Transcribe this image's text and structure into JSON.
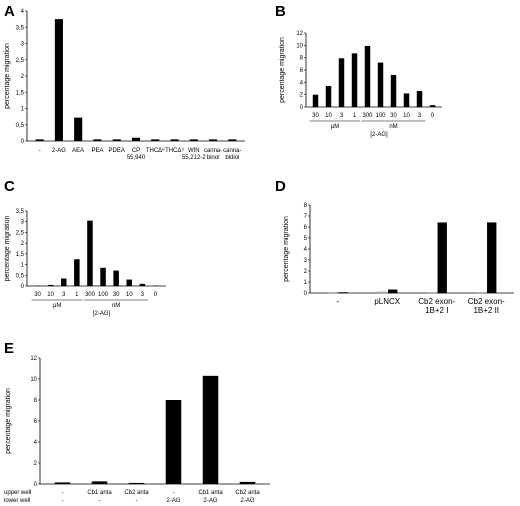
{
  "chart_data": [
    {
      "type": "bar",
      "panel": "A",
      "ylabel": "percentage migration",
      "ylim": [
        0,
        4
      ],
      "yticks": [
        "0",
        "0,5",
        "1",
        "1,5",
        "2",
        "2,5",
        "3",
        "3,5",
        "4"
      ],
      "categories": [
        "-",
        "2-AG",
        "AEA",
        "PEA",
        "PDEA",
        "CP 55,940",
        "THCΔ⁸",
        "THCΔ⁹",
        "WIN 55,212-2",
        "canna-binol",
        "canna-bidiol"
      ],
      "category_lines": [
        [
          "-"
        ],
        [
          "2-AG"
        ],
        [
          "AEA"
        ],
        [
          "PEA"
        ],
        [
          "PDEA"
        ],
        [
          "CP",
          "55,940"
        ],
        [
          "THCΔ⁸"
        ],
        [
          "THCΔ⁹"
        ],
        [
          "WIN",
          "55,212-2"
        ],
        [
          "canna-",
          "binol"
        ],
        [
          "canna-",
          "bidiol"
        ]
      ],
      "values": [
        0.05,
        3.75,
        0.72,
        0.05,
        0.05,
        0.1,
        0.05,
        0.05,
        0.05,
        0.05,
        0.05
      ]
    },
    {
      "type": "bar",
      "panel": "B",
      "ylabel": "percentage migration",
      "ylim": [
        0,
        12
      ],
      "yticks": [
        "0",
        "2",
        "4",
        "6",
        "8",
        "10",
        "12"
      ],
      "categories": [
        "30",
        "10",
        "3",
        "1",
        "300",
        "100",
        "30",
        "10",
        "3",
        "0"
      ],
      "values": [
        2.0,
        3.4,
        7.9,
        8.7,
        9.9,
        7.2,
        5.2,
        2.2,
        2.6,
        0.3
      ],
      "groups": [
        {
          "label": "μM",
          "from": 0,
          "to": 3
        },
        {
          "label": "nM",
          "from": 4,
          "to": 8
        }
      ],
      "xlabel": "[2-AG]"
    },
    {
      "type": "bar",
      "panel": "C",
      "ylabel": "percentage migration",
      "ylim": [
        0,
        3.5
      ],
      "yticks": [
        "0",
        "0,5",
        "1",
        "1,5",
        "2",
        "2,5",
        "3",
        "3,5"
      ],
      "categories": [
        "30",
        "10",
        "3",
        "1",
        "300",
        "100",
        "30",
        "10",
        "3",
        "0"
      ],
      "values": [
        0.02,
        0.05,
        0.35,
        1.25,
        3.05,
        0.85,
        0.72,
        0.3,
        0.1,
        0.02
      ],
      "groups": [
        {
          "label": "μM",
          "from": 0,
          "to": 3
        },
        {
          "label": "nM",
          "from": 4,
          "to": 8
        }
      ],
      "xlabel": "[2-AG]"
    },
    {
      "type": "bar",
      "panel": "D",
      "ylabel": "percentage migration",
      "ylim": [
        0,
        8
      ],
      "yticks": [
        "0",
        "1",
        "2",
        "3",
        "4",
        "5",
        "6",
        "7",
        "8"
      ],
      "categories": [
        "-",
        "pLNCX",
        "Cb2 exon-1B+2 I",
        "Cb2 exon-1B+2 II"
      ],
      "category_lines": [
        [
          "-"
        ],
        [
          "pLNCX"
        ],
        [
          "Cb2 exon-",
          "1B+2 I"
        ],
        [
          "Cb2 exon-",
          "1B+2 II"
        ]
      ],
      "series": [
        {
          "values": [
            0.05,
            0.1,
            0.05,
            0.05
          ],
          "color": "#bfbfbf"
        },
        {
          "values": [
            0.05,
            0.3,
            6.4,
            6.4
          ],
          "color": "#000000"
        }
      ]
    },
    {
      "type": "bar",
      "panel": "E",
      "ylabel": "percentage migration",
      "ylim": [
        0,
        12
      ],
      "yticks": [
        "0",
        "2",
        "4",
        "6",
        "8",
        "10",
        "12"
      ],
      "row_labels": [
        "upper well",
        "lower well"
      ],
      "upper_well": [
        "-",
        "Cb1 anta",
        "Cb2 anta",
        "-",
        "Cb1 anta",
        "Cb2 anta"
      ],
      "lower_well": [
        "-",
        "-",
        "-",
        "2-AG",
        "2-AG",
        "2-AG"
      ],
      "values": [
        0.15,
        0.25,
        0.1,
        8.0,
        10.3,
        0.2
      ]
    }
  ]
}
